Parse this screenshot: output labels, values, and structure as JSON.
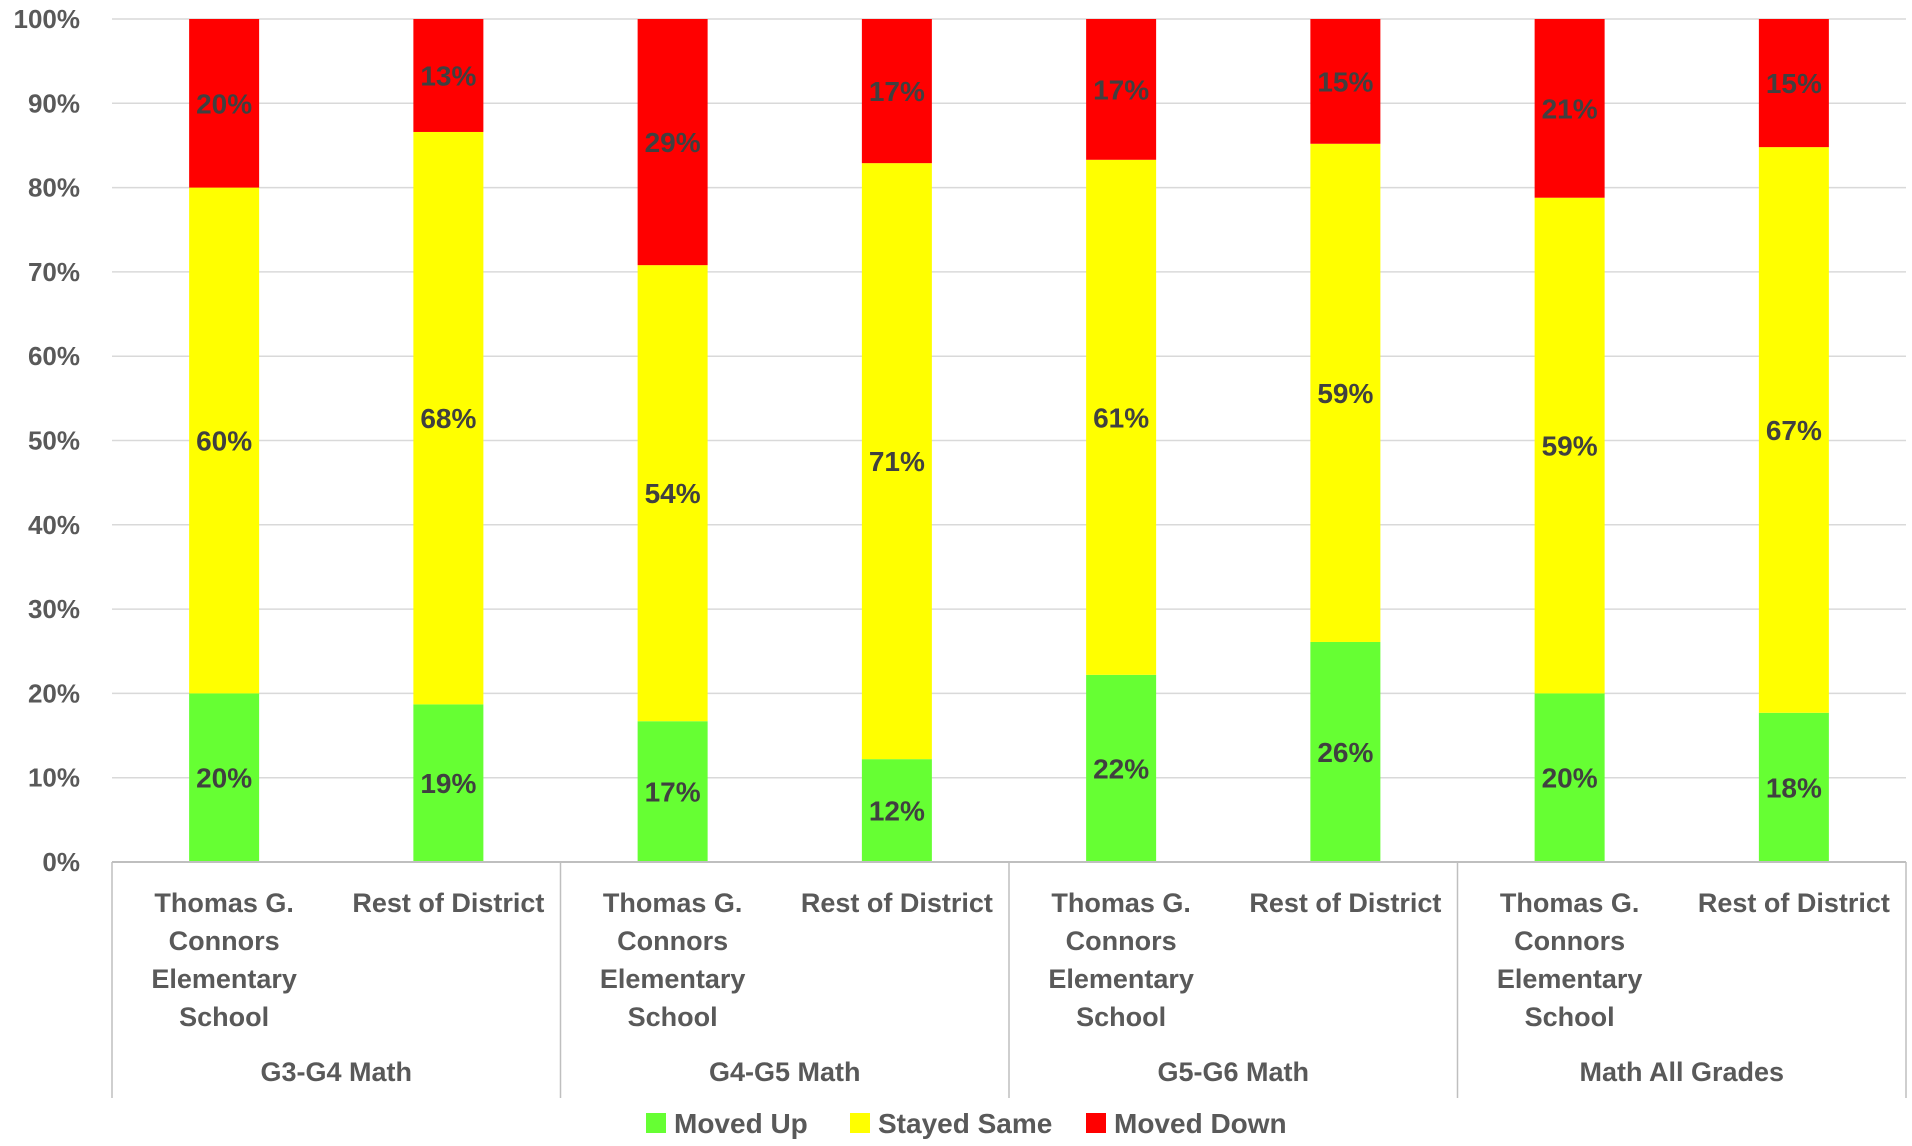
{
  "chart_data": {
    "type": "bar",
    "stacked": true,
    "percent_stacked": true,
    "groups": [
      {
        "label": "G3-G4 Math",
        "categories": [
          "Thomas G. Connors Elementary School",
          "Rest of District"
        ]
      },
      {
        "label": "G4-G5 Math",
        "categories": [
          "Thomas G. Connors Elementary School",
          "Rest of District"
        ]
      },
      {
        "label": "G5-G6 Math",
        "categories": [
          "Thomas G. Connors Elementary School",
          "Rest of District"
        ]
      },
      {
        "label": "Math All Grades",
        "categories": [
          "Thomas G. Connors Elementary School",
          "Rest of District"
        ]
      }
    ],
    "series": [
      {
        "name": "Moved Up",
        "color": "#66ff33",
        "values": [
          20,
          18.7,
          16.7,
          12.2,
          22.2,
          26.1,
          20,
          17.7
        ],
        "labels": [
          "20%",
          "19%",
          "17%",
          "12%",
          "22%",
          "26%",
          "20%",
          "18%"
        ]
      },
      {
        "name": "Stayed Same",
        "color": "#ffff00",
        "values": [
          60,
          67.9,
          54.1,
          70.7,
          61.1,
          59.1,
          58.8,
          67.1
        ],
        "labels": [
          "60%",
          "68%",
          "54%",
          "71%",
          "61%",
          "59%",
          "59%",
          "67%"
        ]
      },
      {
        "name": "Moved Down",
        "color": "#ff0000",
        "values": [
          20,
          13.4,
          29.2,
          17.1,
          16.7,
          14.8,
          21.2,
          15.2
        ],
        "labels": [
          "20%",
          "13%",
          "29%",
          "17%",
          "17%",
          "15%",
          "21%",
          "15%"
        ]
      }
    ],
    "y_ticks": [
      "0%",
      "10%",
      "20%",
      "30%",
      "40%",
      "50%",
      "60%",
      "70%",
      "80%",
      "90%",
      "100%"
    ],
    "ylim": [
      0,
      100
    ],
    "grid": true,
    "legend_position": "bottom",
    "title": "",
    "xlabel": "",
    "ylabel": ""
  }
}
